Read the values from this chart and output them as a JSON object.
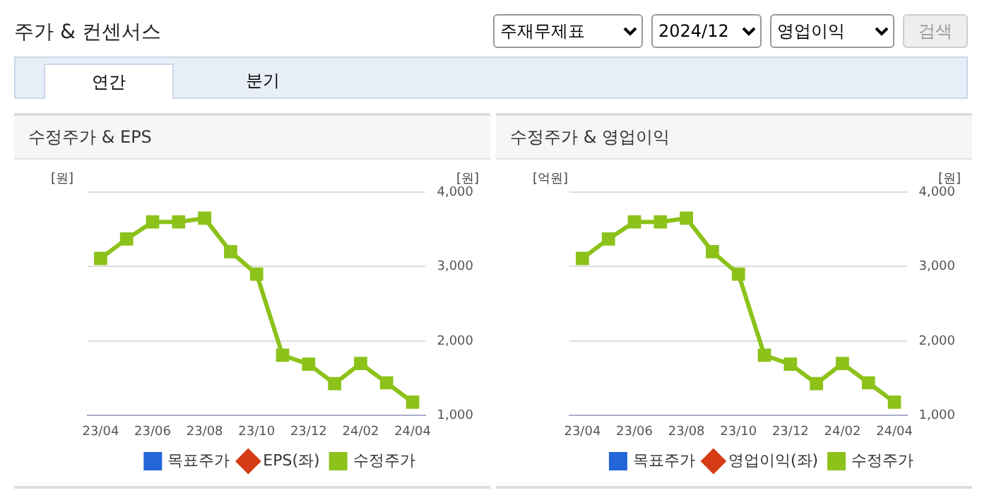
{
  "chart_data": [
    {
      "type": "line",
      "title": "수정주가 & EPS",
      "ylabel": "[원]",
      "y2label": "[원]",
      "annotations": [
        "주가 & 컨센서스",
        "주재무제표",
        "2024/12",
        "영업이익",
        "검색",
        "연간",
        "분기"
      ],
      "categories": [
        "23/04",
        null,
        "23/06",
        null,
        "23/08",
        null,
        "23/10",
        null,
        "23/12",
        null,
        "24/02",
        null,
        "24/04"
      ],
      "series": [
        {
          "name": "목표주가",
          "color": "#2366d9",
          "marker": "square",
          "values": [
            null,
            null,
            null,
            null,
            null,
            null,
            null,
            null,
            null,
            null,
            null,
            null,
            null
          ]
        },
        {
          "name": "EPS(좌)",
          "color": "#d53b14",
          "marker": "diamond",
          "values": [
            null,
            null,
            null,
            null,
            null,
            null,
            null,
            null,
            null,
            null,
            null,
            null,
            null
          ]
        },
        {
          "name": "수정주가",
          "color": "#8cc21a",
          "marker": "square",
          "axis": "y2",
          "values": [
            3110,
            3370,
            3600,
            3600,
            3650,
            3200,
            2900,
            1810,
            1690,
            1430,
            1700,
            1440,
            1180
          ]
        }
      ],
      "y2lim": [
        1000,
        4000
      ],
      "y2ticks": [
        {
          "value": 1000,
          "label": "1,000"
        },
        {
          "value": 2000,
          "label": "2,000"
        },
        {
          "value": 3000,
          "label": "3,000"
        },
        {
          "value": 4000,
          "label": "4,000"
        }
      ],
      "grid": "y",
      "legend": "bottom"
    },
    {
      "type": "line",
      "title": "수정주가 & 영업이익",
      "ylabel": "[억원]",
      "y2label": "[원]",
      "categories": [
        "23/04",
        null,
        "23/06",
        null,
        "23/08",
        null,
        "23/10",
        null,
        "23/12",
        null,
        "24/02",
        null,
        "24/04"
      ],
      "series": [
        {
          "name": "목표주가",
          "color": "#2366d9",
          "marker": "square",
          "values": [
            null,
            null,
            null,
            null,
            null,
            null,
            null,
            null,
            null,
            null,
            null,
            null,
            null
          ]
        },
        {
          "name": "영업이익(좌)",
          "color": "#d53b14",
          "marker": "diamond",
          "values": [
            null,
            null,
            null,
            null,
            null,
            null,
            null,
            null,
            null,
            null,
            null,
            null,
            null
          ]
        },
        {
          "name": "수정주가",
          "color": "#8cc21a",
          "marker": "square",
          "axis": "y2",
          "values": [
            3110,
            3370,
            3600,
            3600,
            3650,
            3200,
            2900,
            1810,
            1690,
            1430,
            1700,
            1440,
            1180
          ]
        }
      ],
      "y2lim": [
        1000,
        4000
      ],
      "y2ticks": [
        {
          "value": 1000,
          "label": "1,000"
        },
        {
          "value": 2000,
          "label": "2,000"
        },
        {
          "value": 3000,
          "label": "3,000"
        },
        {
          "value": 4000,
          "label": "4,000"
        }
      ],
      "grid": "y",
      "legend": "bottom"
    }
  ]
}
